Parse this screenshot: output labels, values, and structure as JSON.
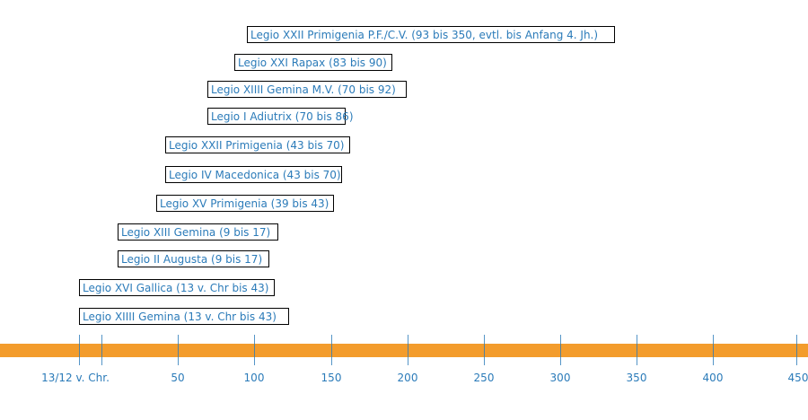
{
  "colors": {
    "bar": "#f39c2c",
    "text": "#2b7bb9",
    "border": "#000000"
  },
  "legions": [
    {
      "label": "Legio XXII Primigenia P.F./C.V. (93 bis 350, evtl. bis Anfang 4. Jh.)"
    },
    {
      "label": "Legio XXI Rapax (83 bis 90)"
    },
    {
      "label": "Legio XIIII Gemina M.V. (70 bis 92)"
    },
    {
      "label": "Legio I Adiutrix (70 bis 86)"
    },
    {
      "label": "Legio XXII Primigenia (43 bis 70)"
    },
    {
      "label": "Legio IV Macedonica (43 bis 70)"
    },
    {
      "label": "Legio XV Primigenia (39 bis 43)"
    },
    {
      "label": "Legio XIII Gemina (9 bis 17)"
    },
    {
      "label": "Legio II Augusta (9 bis 17)"
    },
    {
      "label": "Legio XVI Gallica (13 v. Chr bis 43)"
    },
    {
      "label": "Legio XIIII Gemina (13 v. Chr bis 43)"
    }
  ],
  "axis": {
    "labels": [
      "13/12 v. Chr.",
      "50",
      "100",
      "150",
      "200",
      "250",
      "300",
      "350",
      "400",
      "450"
    ]
  }
}
